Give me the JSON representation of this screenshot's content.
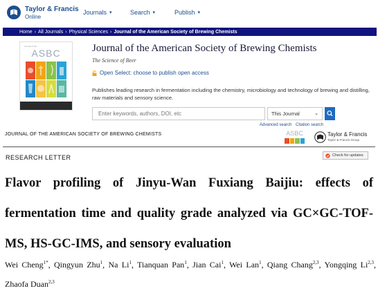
{
  "brand": {
    "name": "Taylor & Francis",
    "sub": "Online"
  },
  "nav": {
    "items": [
      {
        "label": "Journals"
      },
      {
        "label": "Search"
      },
      {
        "label": "Publish"
      }
    ]
  },
  "breadcrumb": {
    "items": [
      "Home",
      "All Journals",
      "Physical Sciences",
      "Journal of the American Society of Brewing Chemists"
    ]
  },
  "journal": {
    "cover_top": "Journal of the",
    "cover_title": "ASBC",
    "title": "Journal of the American Society of Brewing Chemists",
    "subtitle": "The Science of Beer",
    "open_select": "Open Select: choose to publish open access",
    "description": "Publishes leading research in fermentation including the chemistry, microbiology and technology of brewing and distilling, raw materials and sensory science."
  },
  "search": {
    "placeholder": "Enter keywords, authors, DOI, etc",
    "scope": "This Journal",
    "advanced": "Advanced search",
    "citation": "Citation search"
  },
  "pdf": {
    "journal_header": "JOURNAL OF THE AMERICAN SOCIETY OF BREWING CHEMISTS",
    "asbc": "ASBC",
    "tf_name": "Taylor & Francis",
    "tf_sub": "Taylor & Francis Group",
    "section": "RESEARCH LETTER",
    "check_updates": "Check for updates",
    "title": "Flavor profiling of Jinyu-Wan Fuxiang Baijiu: effects of fermentation time and quality grade analyzed via GC×GC-TOF-MS, HS-GC-IMS, and sensory evaluation",
    "authors": [
      {
        "name": "Wei Cheng",
        "sup": "1*"
      },
      {
        "name": "Qingyun Zhu",
        "sup": "1"
      },
      {
        "name": "Na Li",
        "sup": "1"
      },
      {
        "name": "Tianquan Pan",
        "sup": "1"
      },
      {
        "name": "Jian Cai",
        "sup": "1"
      },
      {
        "name": "Wei Lan",
        "sup": "1"
      },
      {
        "name": "Qiang Chang",
        "sup": "2,3"
      },
      {
        "name": "Yongqing Li",
        "sup": "2,3"
      },
      {
        "name": "Zhaofa Duan",
        "sup": "2,3"
      }
    ]
  },
  "colors": {
    "brand_blue": "#1d4e8f",
    "crumb_bg": "#10147e",
    "search_button": "#1f6bc1"
  },
  "icons": {
    "brand_logo": "tf-book-logo",
    "lock": "lock-icon",
    "search": "search-icon",
    "caret": "chevron-down-icon"
  }
}
